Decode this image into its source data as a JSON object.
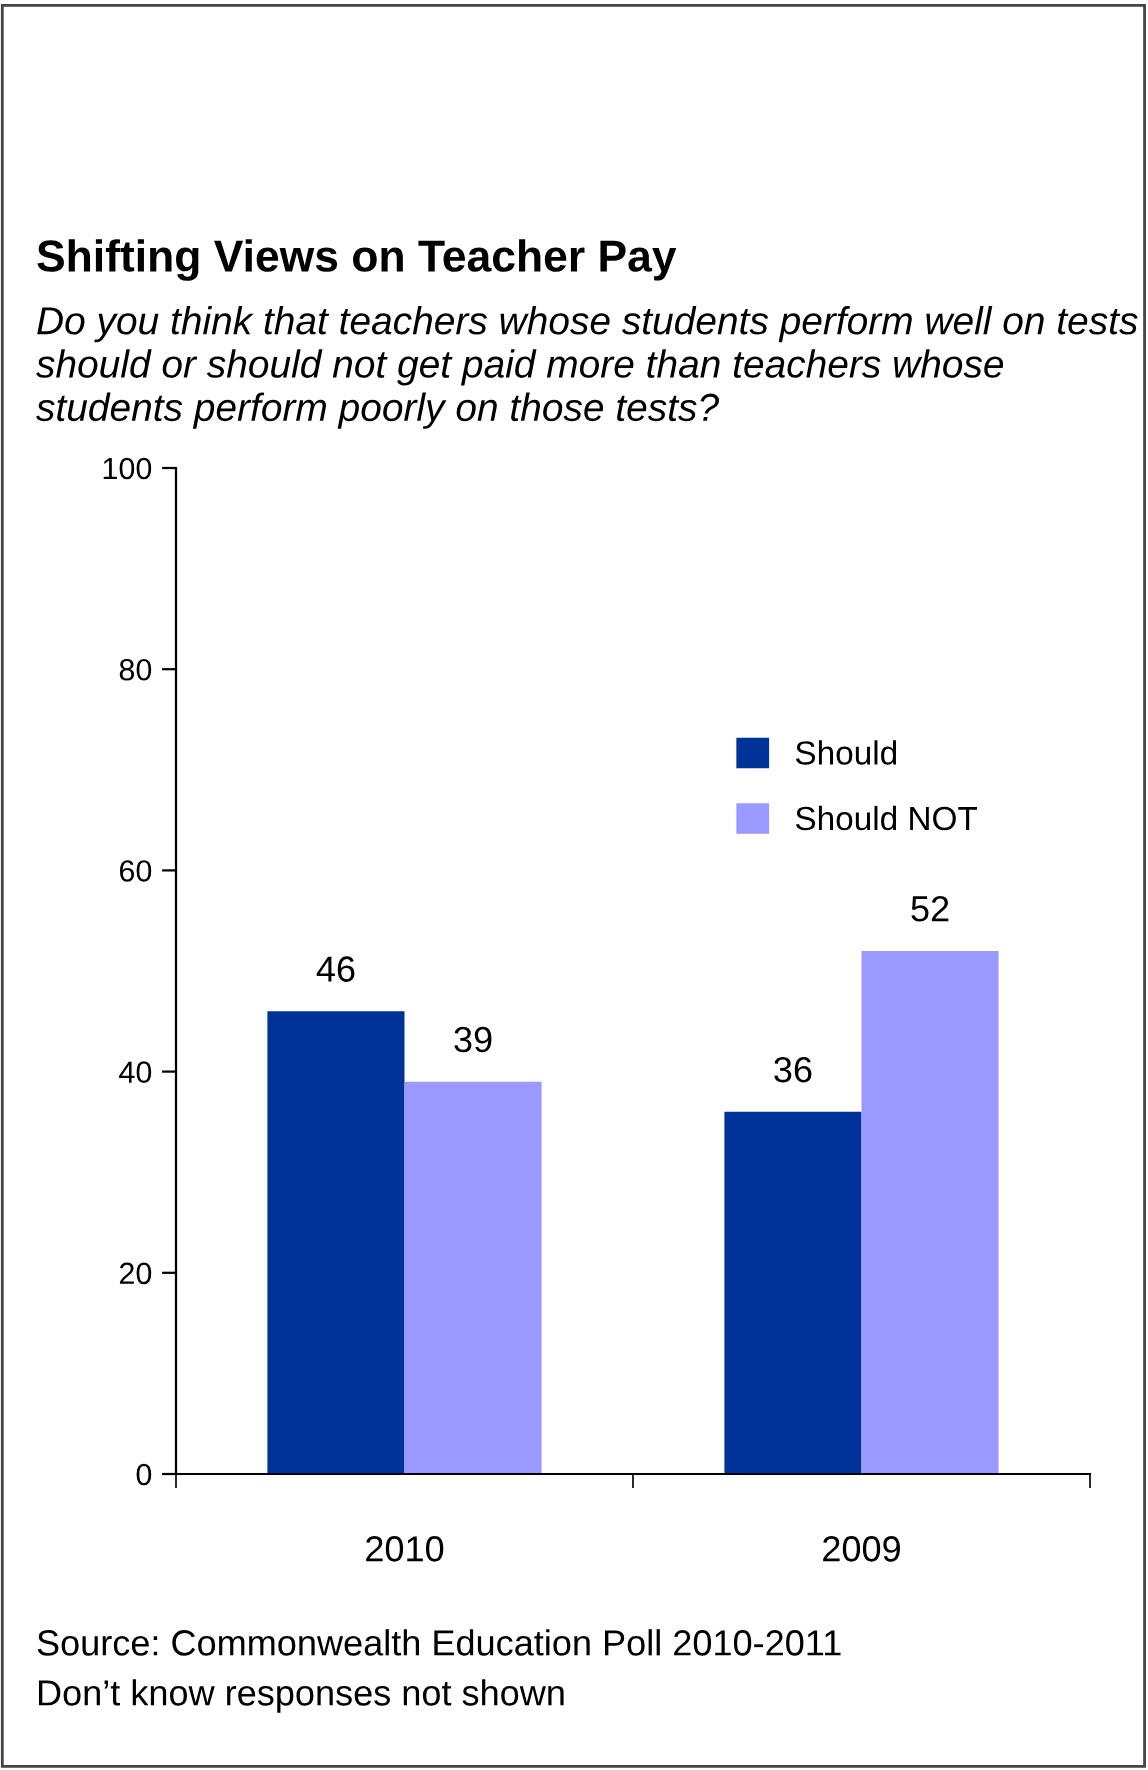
{
  "chart_data": {
    "type": "bar",
    "title": "Shifting Views on Teacher Pay",
    "subtitle": "Do you think that teachers whose students perform well on tests should or should not get paid more than teachers whose students perform poorly on those tests?",
    "categories": [
      "2010",
      "2009"
    ],
    "series": [
      {
        "name": "Should",
        "color": "#003399",
        "values": [
          46,
          36
        ]
      },
      {
        "name": "Should NOT",
        "color": "#9999ff",
        "values": [
          39,
          52
        ]
      }
    ],
    "ylim": [
      0,
      100
    ],
    "yticks": [
      0,
      20,
      40,
      60,
      80,
      100
    ],
    "grid": false,
    "legend": "top right",
    "data_labels": true,
    "annotations": [
      "Source: Commonwealth Education Poll 2010-2011",
      "Don’t know responses not shown"
    ]
  }
}
